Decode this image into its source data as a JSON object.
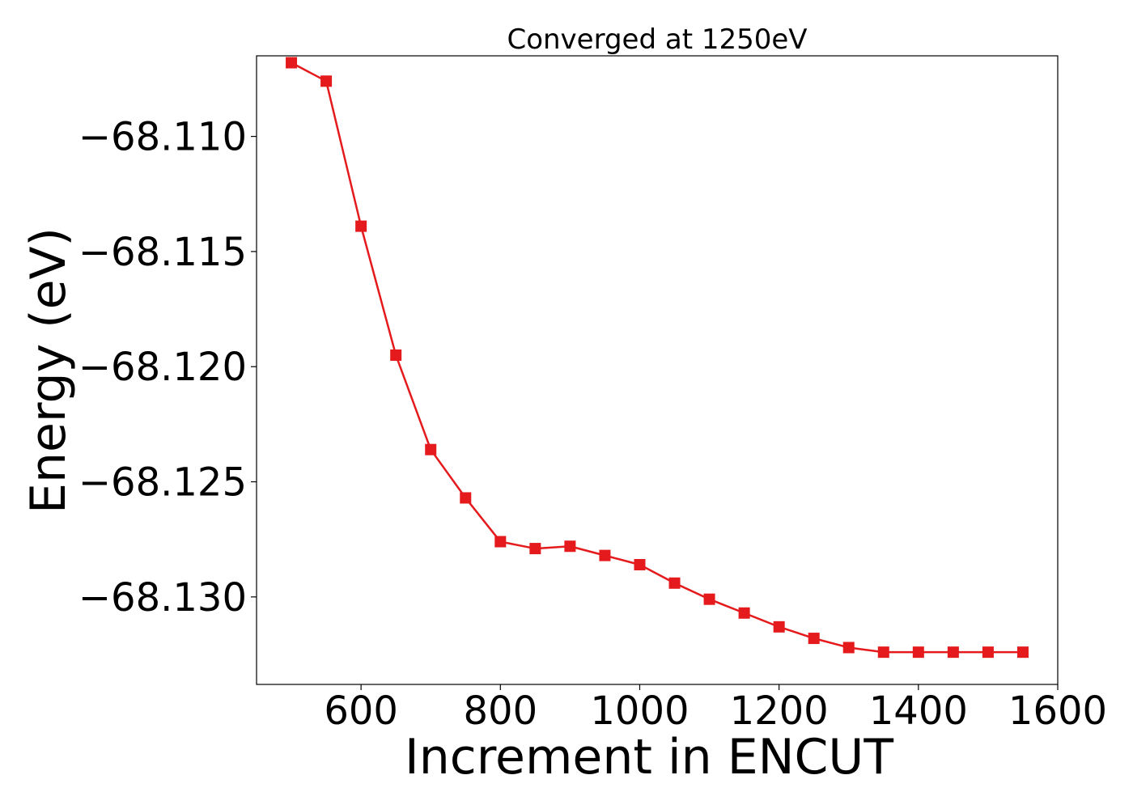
{
  "chart_data": {
    "type": "line",
    "title": "Converged at 1250eV",
    "xlabel": "Increment in ENCUT",
    "ylabel": "Energy (eV)",
    "xlim": [
      450,
      1600
    ],
    "ylim": [
      -68.1338,
      -68.1065
    ],
    "xticks": [
      600,
      800,
      1000,
      1200,
      1400,
      1600
    ],
    "xtick_labels": [
      "600",
      "800",
      "1000",
      "1200",
      "1400",
      "1600"
    ],
    "yticks": [
      -68.11,
      -68.115,
      -68.12,
      -68.125,
      -68.13
    ],
    "ytick_labels": [
      "−68.110",
      "−68.115",
      "−68.120",
      "−68.125",
      "−68.130"
    ],
    "grid": false,
    "legend": "none",
    "series": [
      {
        "color": "#e41a1c",
        "marker": "square",
        "x": [
          500,
          550,
          600,
          650,
          700,
          750,
          800,
          850,
          900,
          950,
          1000,
          1050,
          1100,
          1150,
          1200,
          1250,
          1300,
          1350,
          1400,
          1450,
          1500,
          1550
        ],
        "y": [
          -68.1068,
          -68.1076,
          -68.1139,
          -68.1195,
          -68.1236,
          -68.1257,
          -68.1276,
          -68.1279,
          -68.1278,
          -68.1282,
          -68.1286,
          -68.1294,
          -68.1301,
          -68.1307,
          -68.1313,
          -68.1318,
          -68.1322,
          -68.1324,
          -68.1324,
          -68.1324,
          -68.1324,
          -68.1324
        ]
      }
    ]
  }
}
